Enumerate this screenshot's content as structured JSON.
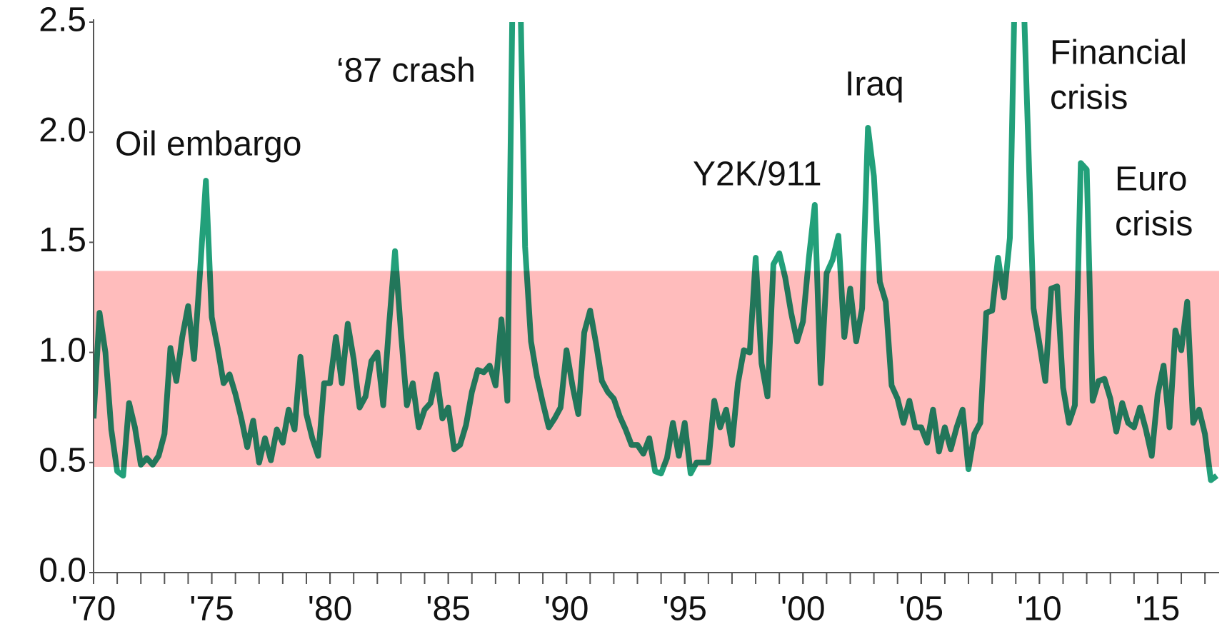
{
  "chart_data": {
    "type": "line",
    "x": [
      1970,
      1970.25,
      1970.5,
      1970.75,
      1971,
      1971.25,
      1971.5,
      1971.75,
      1972,
      1972.25,
      1972.5,
      1972.75,
      1973,
      1973.25,
      1973.5,
      1973.75,
      1974,
      1974.25,
      1974.5,
      1974.75,
      1975,
      1975.25,
      1975.5,
      1975.75,
      1976,
      1976.25,
      1976.5,
      1976.75,
      1977,
      1977.25,
      1977.5,
      1977.75,
      1978,
      1978.25,
      1978.5,
      1978.75,
      1979,
      1979.25,
      1979.5,
      1979.75,
      1980,
      1980.25,
      1980.5,
      1980.75,
      1981,
      1981.25,
      1981.5,
      1981.75,
      1982,
      1982.25,
      1982.5,
      1982.75,
      1983,
      1983.25,
      1983.5,
      1983.75,
      1984,
      1984.25,
      1984.5,
      1984.75,
      1985,
      1985.25,
      1985.5,
      1985.75,
      1986,
      1986.25,
      1986.5,
      1986.75,
      1987,
      1987.25,
      1987.5,
      1987.75,
      1988,
      1988.25,
      1988.5,
      1988.75,
      1989,
      1989.25,
      1989.5,
      1989.75,
      1990,
      1990.25,
      1990.5,
      1990.75,
      1991,
      1991.25,
      1991.5,
      1991.75,
      1992,
      1992.25,
      1992.5,
      1992.75,
      1993,
      1993.25,
      1993.5,
      1993.75,
      1994,
      1994.25,
      1994.5,
      1994.75,
      1995,
      1995.25,
      1995.5,
      1995.75,
      1996,
      1996.25,
      1996.5,
      1996.75,
      1997,
      1997.25,
      1997.5,
      1997.75,
      1998,
      1998.25,
      1998.5,
      1998.75,
      1999,
      1999.25,
      1999.5,
      1999.75,
      2000,
      2000.25,
      2000.5,
      2000.75,
      2001,
      2001.25,
      2001.5,
      2001.75,
      2002,
      2002.25,
      2002.5,
      2002.75,
      2003,
      2003.25,
      2003.5,
      2003.75,
      2004,
      2004.25,
      2004.5,
      2004.75,
      2005,
      2005.25,
      2005.5,
      2005.75,
      2006,
      2006.25,
      2006.5,
      2006.75,
      2007,
      2007.25,
      2007.5,
      2007.75,
      2008,
      2008.25,
      2008.5,
      2008.75,
      2009,
      2009.25,
      2009.5,
      2009.75,
      2010,
      2010.25,
      2010.5,
      2010.75,
      2011,
      2011.25,
      2011.5,
      2011.75,
      2012,
      2012.25,
      2012.5,
      2012.75,
      2013,
      2013.25,
      2013.5,
      2013.75,
      2014,
      2014.25,
      2014.5,
      2014.75,
      2015,
      2015.25,
      2015.5,
      2015.75,
      2016,
      2016.25,
      2016.5,
      2016.75,
      2017,
      2017.25,
      2017.5
    ],
    "values": [
      0.7,
      1.18,
      1.0,
      0.65,
      0.46,
      0.44,
      0.77,
      0.66,
      0.49,
      0.52,
      0.49,
      0.53,
      0.63,
      1.02,
      0.87,
      1.07,
      1.21,
      0.97,
      1.36,
      1.78,
      1.16,
      1.02,
      0.86,
      0.9,
      0.81,
      0.7,
      0.57,
      0.69,
      0.5,
      0.61,
      0.51,
      0.65,
      0.59,
      0.74,
      0.65,
      0.98,
      0.72,
      0.61,
      0.53,
      0.86,
      0.86,
      1.07,
      0.86,
      1.13,
      0.97,
      0.75,
      0.8,
      0.96,
      1.0,
      0.76,
      1.13,
      1.46,
      1.09,
      0.76,
      0.86,
      0.66,
      0.74,
      0.77,
      0.9,
      0.7,
      0.75,
      0.56,
      0.58,
      0.67,
      0.82,
      0.92,
      0.91,
      0.94,
      0.85,
      1.15,
      0.78,
      2.9,
      2.9,
      1.48,
      1.05,
      0.89,
      0.77,
      0.66,
      0.7,
      0.75,
      1.01,
      0.85,
      0.72,
      1.09,
      1.19,
      1.04,
      0.87,
      0.82,
      0.79,
      0.71,
      0.65,
      0.58,
      0.58,
      0.54,
      0.61,
      0.46,
      0.45,
      0.52,
      0.68,
      0.53,
      0.68,
      0.45,
      0.5,
      0.5,
      0.5,
      0.78,
      0.66,
      0.74,
      0.58,
      0.86,
      1.01,
      1.0,
      1.43,
      0.95,
      0.8,
      1.4,
      1.45,
      1.34,
      1.18,
      1.05,
      1.14,
      1.43,
      1.67,
      0.86,
      1.36,
      1.42,
      1.53,
      1.07,
      1.29,
      1.05,
      1.2,
      2.02,
      1.8,
      1.32,
      1.23,
      0.85,
      0.79,
      0.68,
      0.78,
      0.66,
      0.66,
      0.59,
      0.74,
      0.55,
      0.66,
      0.56,
      0.66,
      0.74,
      0.47,
      0.63,
      0.68,
      1.18,
      1.19,
      1.43,
      1.25,
      1.52,
      2.9,
      2.9,
      2.05,
      1.2,
      1.04,
      0.87,
      1.29,
      1.3,
      0.84,
      0.68,
      0.76,
      1.86,
      1.83,
      0.78,
      0.87,
      0.88,
      0.79,
      0.64,
      0.77,
      0.68,
      0.66,
      0.75,
      0.65,
      0.53,
      0.81,
      0.94,
      0.66,
      1.1,
      1.01,
      1.23,
      0.68,
      0.74,
      0.63,
      0.42,
      0.44
    ],
    "color": "#22a07a",
    "xlim": [
      1970,
      2017.6
    ],
    "xticks": [
      {
        "value": 1970,
        "label": "'70"
      },
      {
        "value": 1975,
        "label": "'75"
      },
      {
        "value": 1980,
        "label": "'80"
      },
      {
        "value": 1985,
        "label": "'85"
      },
      {
        "value": 1990,
        "label": "'90"
      },
      {
        "value": 1995,
        "label": "'95"
      },
      {
        "value": 2000,
        "label": "'00"
      },
      {
        "value": 2005,
        "label": "'05"
      },
      {
        "value": 2010,
        "label": "'10"
      },
      {
        "value": 2015,
        "label": "'15"
      }
    ],
    "xminor": [
      1970,
      1971,
      1972,
      1973,
      1974,
      1975,
      1976,
      1977,
      1978,
      1979,
      1980,
      1981,
      1982,
      1983,
      1984,
      1985,
      1986,
      1987,
      1988,
      1989,
      1990,
      1991,
      1992,
      1993,
      1994,
      1995,
      1996,
      1997,
      1998,
      1999,
      2000,
      2001,
      2002,
      2003,
      2004,
      2005,
      2006,
      2007,
      2008,
      2009,
      2010,
      2011,
      2012,
      2013,
      2014,
      2015,
      2016,
      2017
    ],
    "ylim": [
      0,
      2.5
    ],
    "yticks": [
      {
        "value": 0,
        "label": "0.0"
      },
      0.5,
      {
        "value": 1,
        "label": "1.0"
      },
      1.5,
      {
        "value": 2,
        "label": "2.0"
      },
      2.5
    ],
    "shaded_range": [
      0.48,
      1.37
    ],
    "shaded_color": "#ffbcbc",
    "annotations": [
      {
        "lines": [
          "Oil embargo"
        ]
      },
      {
        "lines": [
          "‘87 crash"
        ]
      },
      {
        "lines": [
          "Y2K/911"
        ]
      },
      {
        "lines": [
          "Iraq"
        ]
      },
      {
        "lines": [
          "Financial",
          "crisis"
        ]
      },
      {
        "lines": [
          "Euro",
          "crisis"
        ]
      }
    ]
  }
}
